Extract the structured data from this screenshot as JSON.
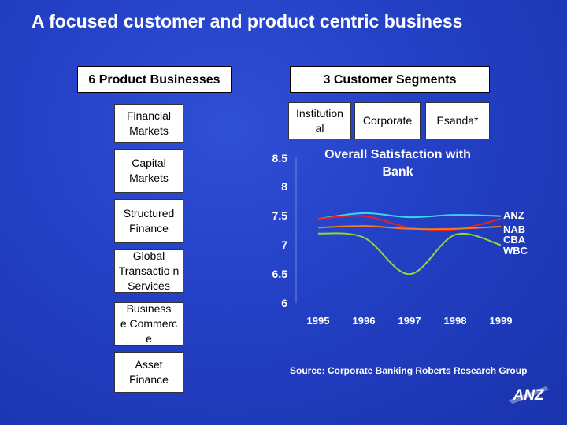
{
  "slide": {
    "title": "A focused customer and product centric business"
  },
  "product_header": "6 Product Businesses",
  "segment_header": "3 Customer Segments",
  "products": [
    "Financial Markets",
    "Capital Markets",
    "Structured Finance",
    "Global Transactio n Services",
    "Business e.Commerc e",
    "Asset Finance"
  ],
  "segments": [
    "Institution al",
    "Corporate",
    "Esanda*"
  ],
  "source": "Source: Corporate Banking Roberts Research Group",
  "logo_text": "ANZ",
  "colors": {
    "ANZ": "#3fd3f0",
    "NAB": "#e02424",
    "CBA": "#f07a2a",
    "WBC": "#8fd63a"
  },
  "chart_data": {
    "type": "line",
    "title": "Overall Satisfaction with Bank",
    "x": [
      "1995",
      "1996",
      "1997",
      "1998",
      "1999"
    ],
    "yticks": [
      "8.5",
      "8",
      "7.5",
      "7",
      "6.5",
      "6"
    ],
    "ylim": [
      6,
      8.5
    ],
    "grid": false,
    "legend_position": "right",
    "series": [
      {
        "name": "ANZ",
        "values": [
          7.45,
          7.55,
          7.48,
          7.52,
          7.5
        ]
      },
      {
        "name": "NAB",
        "values": [
          7.45,
          7.5,
          7.3,
          7.27,
          7.45
        ]
      },
      {
        "name": "CBA",
        "values": [
          7.3,
          7.33,
          7.28,
          7.28,
          7.32
        ]
      },
      {
        "name": "WBC",
        "values": [
          7.2,
          7.13,
          6.5,
          7.18,
          7.0
        ]
      }
    ]
  }
}
